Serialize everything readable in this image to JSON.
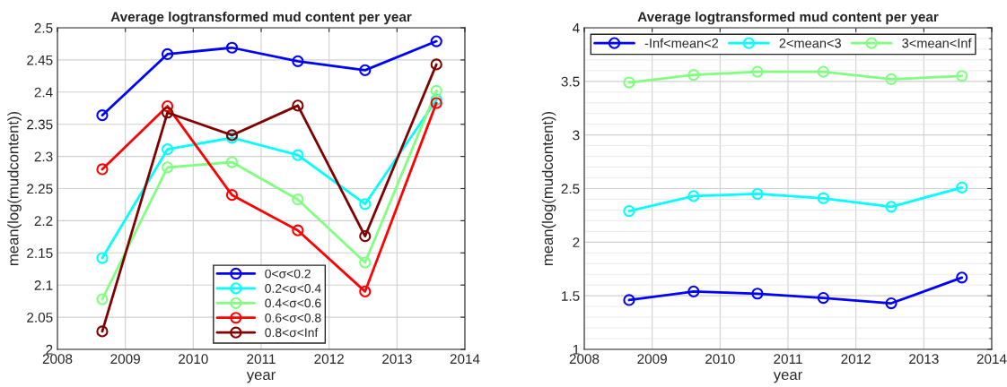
{
  "chart_data": [
    {
      "type": "line",
      "title": "Average logtransformed mud content per year",
      "xlabel": "year",
      "ylabel": "mean(log(mudcontent))",
      "xlim": [
        2008,
        2014
      ],
      "xticks": [
        2008,
        2009,
        2010,
        2011,
        2012,
        2013,
        2014
      ],
      "ylim": [
        2,
        2.5
      ],
      "yticks": [
        2,
        2.05,
        2.1,
        2.15,
        2.2,
        2.25,
        2.3,
        2.35,
        2.4,
        2.45,
        2.5
      ],
      "grid": true,
      "legend": "bottom",
      "marker": "circle",
      "line_style": "solid",
      "x": [
        2008.66,
        2009.62,
        2010.57,
        2011.54,
        2012.53,
        2013.58
      ],
      "series": [
        {
          "name": "0<σ<0.2",
          "color": "#0000ff",
          "values": [
            2.364,
            2.459,
            2.469,
            2.448,
            2.434,
            2.479
          ]
        },
        {
          "name": "0.2<σ<0.4",
          "color": "#00ffff",
          "values": [
            2.142,
            2.311,
            2.329,
            2.302,
            2.226,
            2.388
          ]
        },
        {
          "name": "0.4<σ<0.6",
          "color": "#80ff80",
          "values": [
            2.078,
            2.283,
            2.291,
            2.233,
            2.135,
            2.402
          ]
        },
        {
          "name": "0.6<σ<0.8",
          "color": "#ff0000",
          "values": [
            2.28,
            2.378,
            2.24,
            2.185,
            2.09,
            2.383
          ]
        },
        {
          "name": "0.8<σ<Inf",
          "color": "#800000",
          "values": [
            2.028,
            2.368,
            2.333,
            2.379,
            2.176,
            2.443
          ]
        }
      ]
    },
    {
      "type": "line",
      "title": "Average logtransformed mud content per year",
      "xlabel": "year",
      "ylabel": "mean(log(mudcontent))",
      "xlim": [
        2008,
        2014
      ],
      "xticks": [
        2008,
        2009,
        2010,
        2011,
        2012,
        2013,
        2014
      ],
      "ylim": [
        1,
        4
      ],
      "yticks": [
        1,
        {
          "value": 1.1,
          "label": null
        },
        {
          "value": 1.2,
          "label": null
        },
        {
          "value": 1.3,
          "label": null
        },
        {
          "value": 1.4,
          "label": null
        },
        1.5,
        {
          "value": 1.6,
          "label": null
        },
        {
          "value": 1.7,
          "label": null
        },
        {
          "value": 1.8,
          "label": null
        },
        {
          "value": 1.9,
          "label": null
        },
        2,
        {
          "value": 2.1,
          "label": null
        },
        {
          "value": 2.2,
          "label": null
        },
        {
          "value": 2.3,
          "label": null
        },
        {
          "value": 2.4,
          "label": null
        },
        2.5,
        {
          "value": 2.6,
          "label": null
        },
        {
          "value": 2.7,
          "label": null
        },
        {
          "value": 2.8,
          "label": null
        },
        {
          "value": 2.9,
          "label": null
        },
        3,
        {
          "value": 3.1,
          "label": null
        },
        {
          "value": 3.2,
          "label": null
        },
        {
          "value": 3.3,
          "label": null
        },
        {
          "value": 3.4,
          "label": null
        },
        3.5,
        {
          "value": 3.6,
          "label": null
        },
        {
          "value": 3.7,
          "label": null
        },
        {
          "value": 3.8,
          "label": null
        },
        {
          "value": 3.9,
          "label": null
        },
        4
      ],
      "grid": true,
      "legend": "top left",
      "marker": "circle",
      "line_style": "solid",
      "x": [
        2008.66,
        2009.61,
        2010.55,
        2011.52,
        2012.52,
        2013.56
      ],
      "series": [
        {
          "name": "-Inf<mean<2",
          "color": "#0000ff",
          "values": [
            1.46,
            1.54,
            1.52,
            1.48,
            1.43,
            1.67
          ]
        },
        {
          "name": "2<mean<3",
          "color": "#00ffff",
          "values": [
            2.29,
            2.43,
            2.45,
            2.41,
            2.33,
            2.51
          ]
        },
        {
          "name": "3<mean<Inf",
          "color": "#80ff80",
          "values": [
            3.49,
            3.56,
            3.59,
            3.59,
            3.52,
            3.55
          ]
        }
      ]
    }
  ]
}
